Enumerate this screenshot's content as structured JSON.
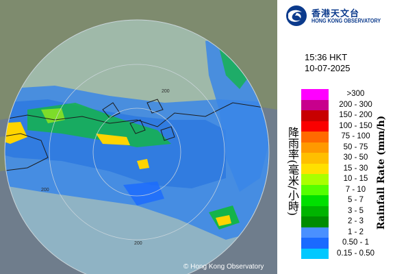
{
  "map": {
    "range_ring_labels": [
      "200",
      "200",
      "200"
    ],
    "copyright": "© Hong Kong Observatory",
    "colors": {
      "land": "#7e8b6e",
      "sea": "#6f7d8c",
      "coverage": "#8fb3c4",
      "coastline": "#1c1c1c"
    }
  },
  "header": {
    "logo_icon": "hko-swirl-logo-icon",
    "org_name_cn": "香港天文台",
    "org_name_en": "HONG KONG OBSERVATORY",
    "time": "15:36 HKT",
    "date": "10-07-2025"
  },
  "legend": {
    "title_cn": "降雨率(毫米/小時)",
    "title_en": "Rainfall Rate (mm/h)",
    "items": [
      {
        "label": ">300",
        "color": "#ff00ff"
      },
      {
        "label": "200 - 300",
        "color": "#c8008c"
      },
      {
        "label": "150 - 200",
        "color": "#c80000"
      },
      {
        "label": "100 - 150",
        "color": "#fa0000"
      },
      {
        "label": "75 - 100",
        "color": "#ff6a00"
      },
      {
        "label": "50 - 75",
        "color": "#ff9900"
      },
      {
        "label": "30 - 50",
        "color": "#ffbf00"
      },
      {
        "label": "15 - 30",
        "color": "#ffe000"
      },
      {
        "label": "10 - 15",
        "color": "#aaff00"
      },
      {
        "label": "7 - 10",
        "color": "#55ff00"
      },
      {
        "label": "5 - 7",
        "color": "#00e000"
      },
      {
        "label": "3 - 5",
        "color": "#00b400"
      },
      {
        "label": "2 - 3",
        "color": "#008c00"
      },
      {
        "label": "1 - 2",
        "color": "#4a90ff"
      },
      {
        "label": "0.50 - 1",
        "color": "#1a6aff"
      },
      {
        "label": "0.15 - 0.50",
        "color": "#00c8ff"
      }
    ]
  }
}
